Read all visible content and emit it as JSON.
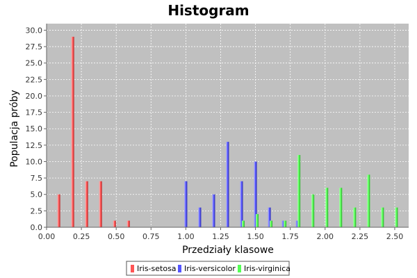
{
  "chart_data": {
    "type": "bar",
    "title": "Histogram",
    "xlabel": "Przedziały klasowe",
    "ylabel": "Populacja próby",
    "xlim": [
      0.0,
      2.6
    ],
    "ylim": [
      0.0,
      31.0
    ],
    "xticks": [
      "0.00",
      "0.25",
      "0.50",
      "0.75",
      "1.00",
      "1.25",
      "1.50",
      "1.75",
      "2.00",
      "2.25",
      "2.50"
    ],
    "yticks": [
      "0.0",
      "2.5",
      "5.0",
      "7.5",
      "10.0",
      "12.5",
      "15.0",
      "17.5",
      "20.0",
      "22.5",
      "25.0",
      "27.5",
      "30.0"
    ],
    "grid": true,
    "legend_position": "bottom",
    "plot_background": "#c0c0c0",
    "series": [
      {
        "name": "Iris-setosa",
        "color": "#ff5555",
        "x": [
          0.1,
          0.2,
          0.3,
          0.4,
          0.5,
          0.6
        ],
        "values": [
          5,
          29,
          7,
          7,
          1,
          1
        ]
      },
      {
        "name": "Iris-versicolor",
        "color": "#5555ff",
        "x": [
          1.0,
          1.1,
          1.2,
          1.3,
          1.4,
          1.5,
          1.6,
          1.7,
          1.8
        ],
        "values": [
          7,
          3,
          5,
          13,
          7,
          10,
          3,
          1,
          1
        ]
      },
      {
        "name": "Iris-virginica",
        "color": "#55ff55",
        "x": [
          1.4,
          1.5,
          1.6,
          1.7,
          1.8,
          1.9,
          2.0,
          2.1,
          2.2,
          2.3,
          2.4,
          2.5
        ],
        "values": [
          1,
          2,
          1,
          1,
          11,
          5,
          6,
          6,
          3,
          8,
          3,
          3
        ]
      }
    ]
  }
}
